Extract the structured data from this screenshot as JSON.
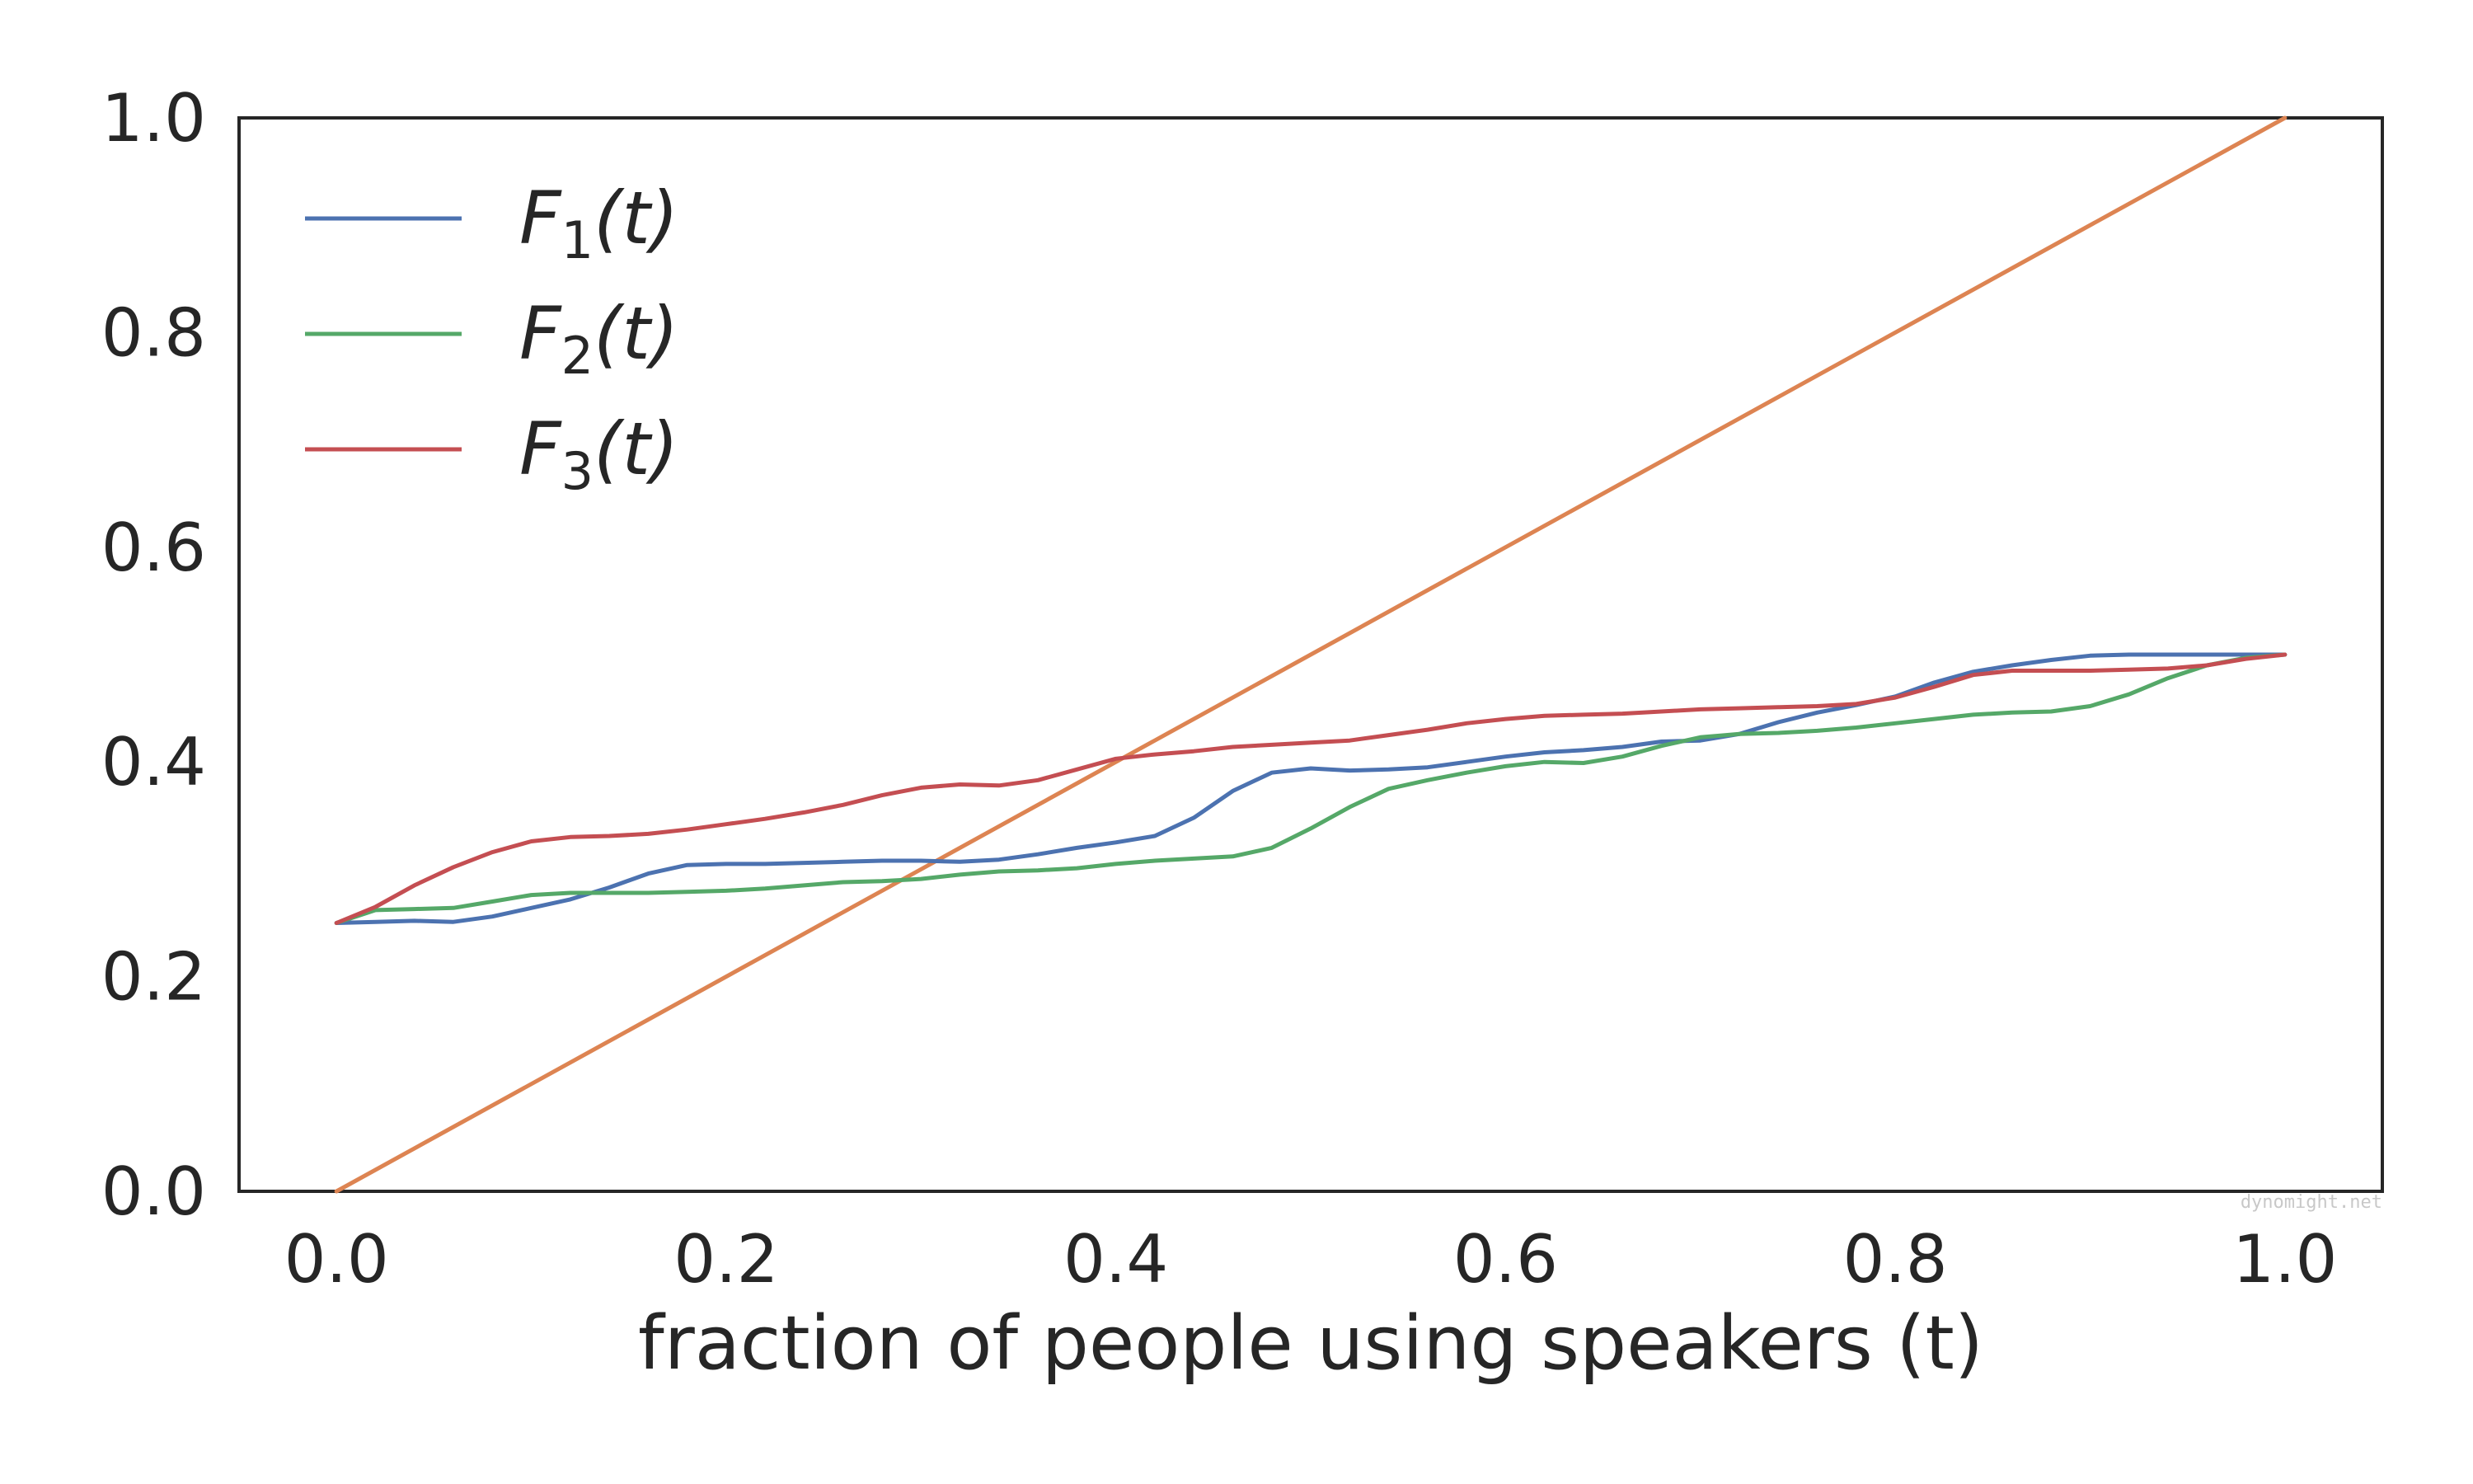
{
  "chart_data": {
    "type": "line",
    "xlabel": "fraction of people using speakers (t)",
    "ylabel": "",
    "xlim": [
      -0.05,
      1.05
    ],
    "ylim": [
      0.0,
      1.0
    ],
    "x_ticks": [
      "0.0",
      "0.2",
      "0.4",
      "0.6",
      "0.8",
      "1.0"
    ],
    "y_ticks": [
      "0.0",
      "0.2",
      "0.4",
      "0.6",
      "0.8",
      "1.0"
    ],
    "grid": false,
    "legend_position": "top-left",
    "series": [
      {
        "name": "F1(t)",
        "legend_base": "F",
        "legend_sub": "1",
        "legend_tail": "(t)",
        "color": "#4c72b0",
        "x": [
          0.0,
          0.02,
          0.04,
          0.06,
          0.08,
          0.1,
          0.12,
          0.14,
          0.16,
          0.18,
          0.2,
          0.22,
          0.24,
          0.26,
          0.28,
          0.3,
          0.32,
          0.34,
          0.36,
          0.38,
          0.4,
          0.42,
          0.44,
          0.46,
          0.48,
          0.5,
          0.52,
          0.54,
          0.56,
          0.58,
          0.6,
          0.62,
          0.64,
          0.66,
          0.68,
          0.7,
          0.72,
          0.74,
          0.76,
          0.78,
          0.8,
          0.82,
          0.84,
          0.86,
          0.88,
          0.9,
          0.92,
          0.94,
          0.96,
          0.98,
          1.0
        ],
        "y": [
          0.25,
          0.251,
          0.252,
          0.251,
          0.256,
          0.264,
          0.272,
          0.283,
          0.296,
          0.304,
          0.305,
          0.305,
          0.306,
          0.307,
          0.308,
          0.308,
          0.307,
          0.309,
          0.314,
          0.32,
          0.325,
          0.331,
          0.348,
          0.373,
          0.39,
          0.394,
          0.392,
          0.393,
          0.395,
          0.4,
          0.405,
          0.409,
          0.411,
          0.414,
          0.419,
          0.42,
          0.426,
          0.437,
          0.446,
          0.453,
          0.461,
          0.474,
          0.484,
          0.49,
          0.495,
          0.499,
          0.5,
          0.5,
          0.5,
          0.5,
          0.5
        ]
      },
      {
        "name": "F2(t)",
        "legend_base": "F",
        "legend_sub": "2",
        "legend_tail": "(t)",
        "color": "#55a868",
        "x": [
          0.0,
          0.02,
          0.04,
          0.06,
          0.08,
          0.1,
          0.12,
          0.14,
          0.16,
          0.18,
          0.2,
          0.22,
          0.24,
          0.26,
          0.28,
          0.3,
          0.32,
          0.34,
          0.36,
          0.38,
          0.4,
          0.42,
          0.44,
          0.46,
          0.48,
          0.5,
          0.52,
          0.54,
          0.56,
          0.58,
          0.6,
          0.62,
          0.64,
          0.66,
          0.68,
          0.7,
          0.72,
          0.74,
          0.76,
          0.78,
          0.8,
          0.82,
          0.84,
          0.86,
          0.88,
          0.9,
          0.92,
          0.94,
          0.96,
          0.98,
          1.0
        ],
        "y": [
          0.25,
          0.262,
          0.263,
          0.264,
          0.27,
          0.276,
          0.278,
          0.278,
          0.278,
          0.279,
          0.28,
          0.282,
          0.285,
          0.288,
          0.289,
          0.291,
          0.295,
          0.298,
          0.299,
          0.301,
          0.305,
          0.308,
          0.31,
          0.312,
          0.32,
          0.338,
          0.358,
          0.375,
          0.383,
          0.39,
          0.396,
          0.4,
          0.399,
          0.405,
          0.415,
          0.423,
          0.426,
          0.427,
          0.429,
          0.432,
          0.436,
          0.44,
          0.444,
          0.446,
          0.447,
          0.452,
          0.463,
          0.478,
          0.49,
          0.497,
          0.5
        ]
      },
      {
        "name": "F3(t)",
        "legend_base": "F",
        "legend_sub": "3",
        "legend_tail": "(t)",
        "color": "#c44e52",
        "x": [
          0.0,
          0.02,
          0.04,
          0.06,
          0.08,
          0.1,
          0.12,
          0.14,
          0.16,
          0.18,
          0.2,
          0.22,
          0.24,
          0.26,
          0.28,
          0.3,
          0.32,
          0.34,
          0.36,
          0.38,
          0.4,
          0.42,
          0.44,
          0.46,
          0.48,
          0.5,
          0.52,
          0.54,
          0.56,
          0.58,
          0.6,
          0.62,
          0.64,
          0.66,
          0.68,
          0.7,
          0.72,
          0.74,
          0.76,
          0.78,
          0.8,
          0.82,
          0.84,
          0.86,
          0.88,
          0.9,
          0.92,
          0.94,
          0.96,
          0.98,
          1.0
        ],
        "y": [
          0.25,
          0.265,
          0.285,
          0.302,
          0.316,
          0.326,
          0.33,
          0.331,
          0.333,
          0.337,
          0.342,
          0.347,
          0.353,
          0.36,
          0.369,
          0.376,
          0.379,
          0.378,
          0.383,
          0.393,
          0.403,
          0.407,
          0.41,
          0.414,
          0.416,
          0.418,
          0.42,
          0.425,
          0.43,
          0.436,
          0.44,
          0.443,
          0.444,
          0.445,
          0.447,
          0.449,
          0.45,
          0.451,
          0.452,
          0.454,
          0.46,
          0.47,
          0.481,
          0.485,
          0.485,
          0.485,
          0.486,
          0.487,
          0.49,
          0.496,
          0.5
        ]
      },
      {
        "name": "",
        "color": "#dd8452",
        "x": [
          0.0,
          1.0
        ],
        "y": [
          0.0,
          1.0
        ]
      }
    ]
  },
  "watermark": "dynomight.net"
}
